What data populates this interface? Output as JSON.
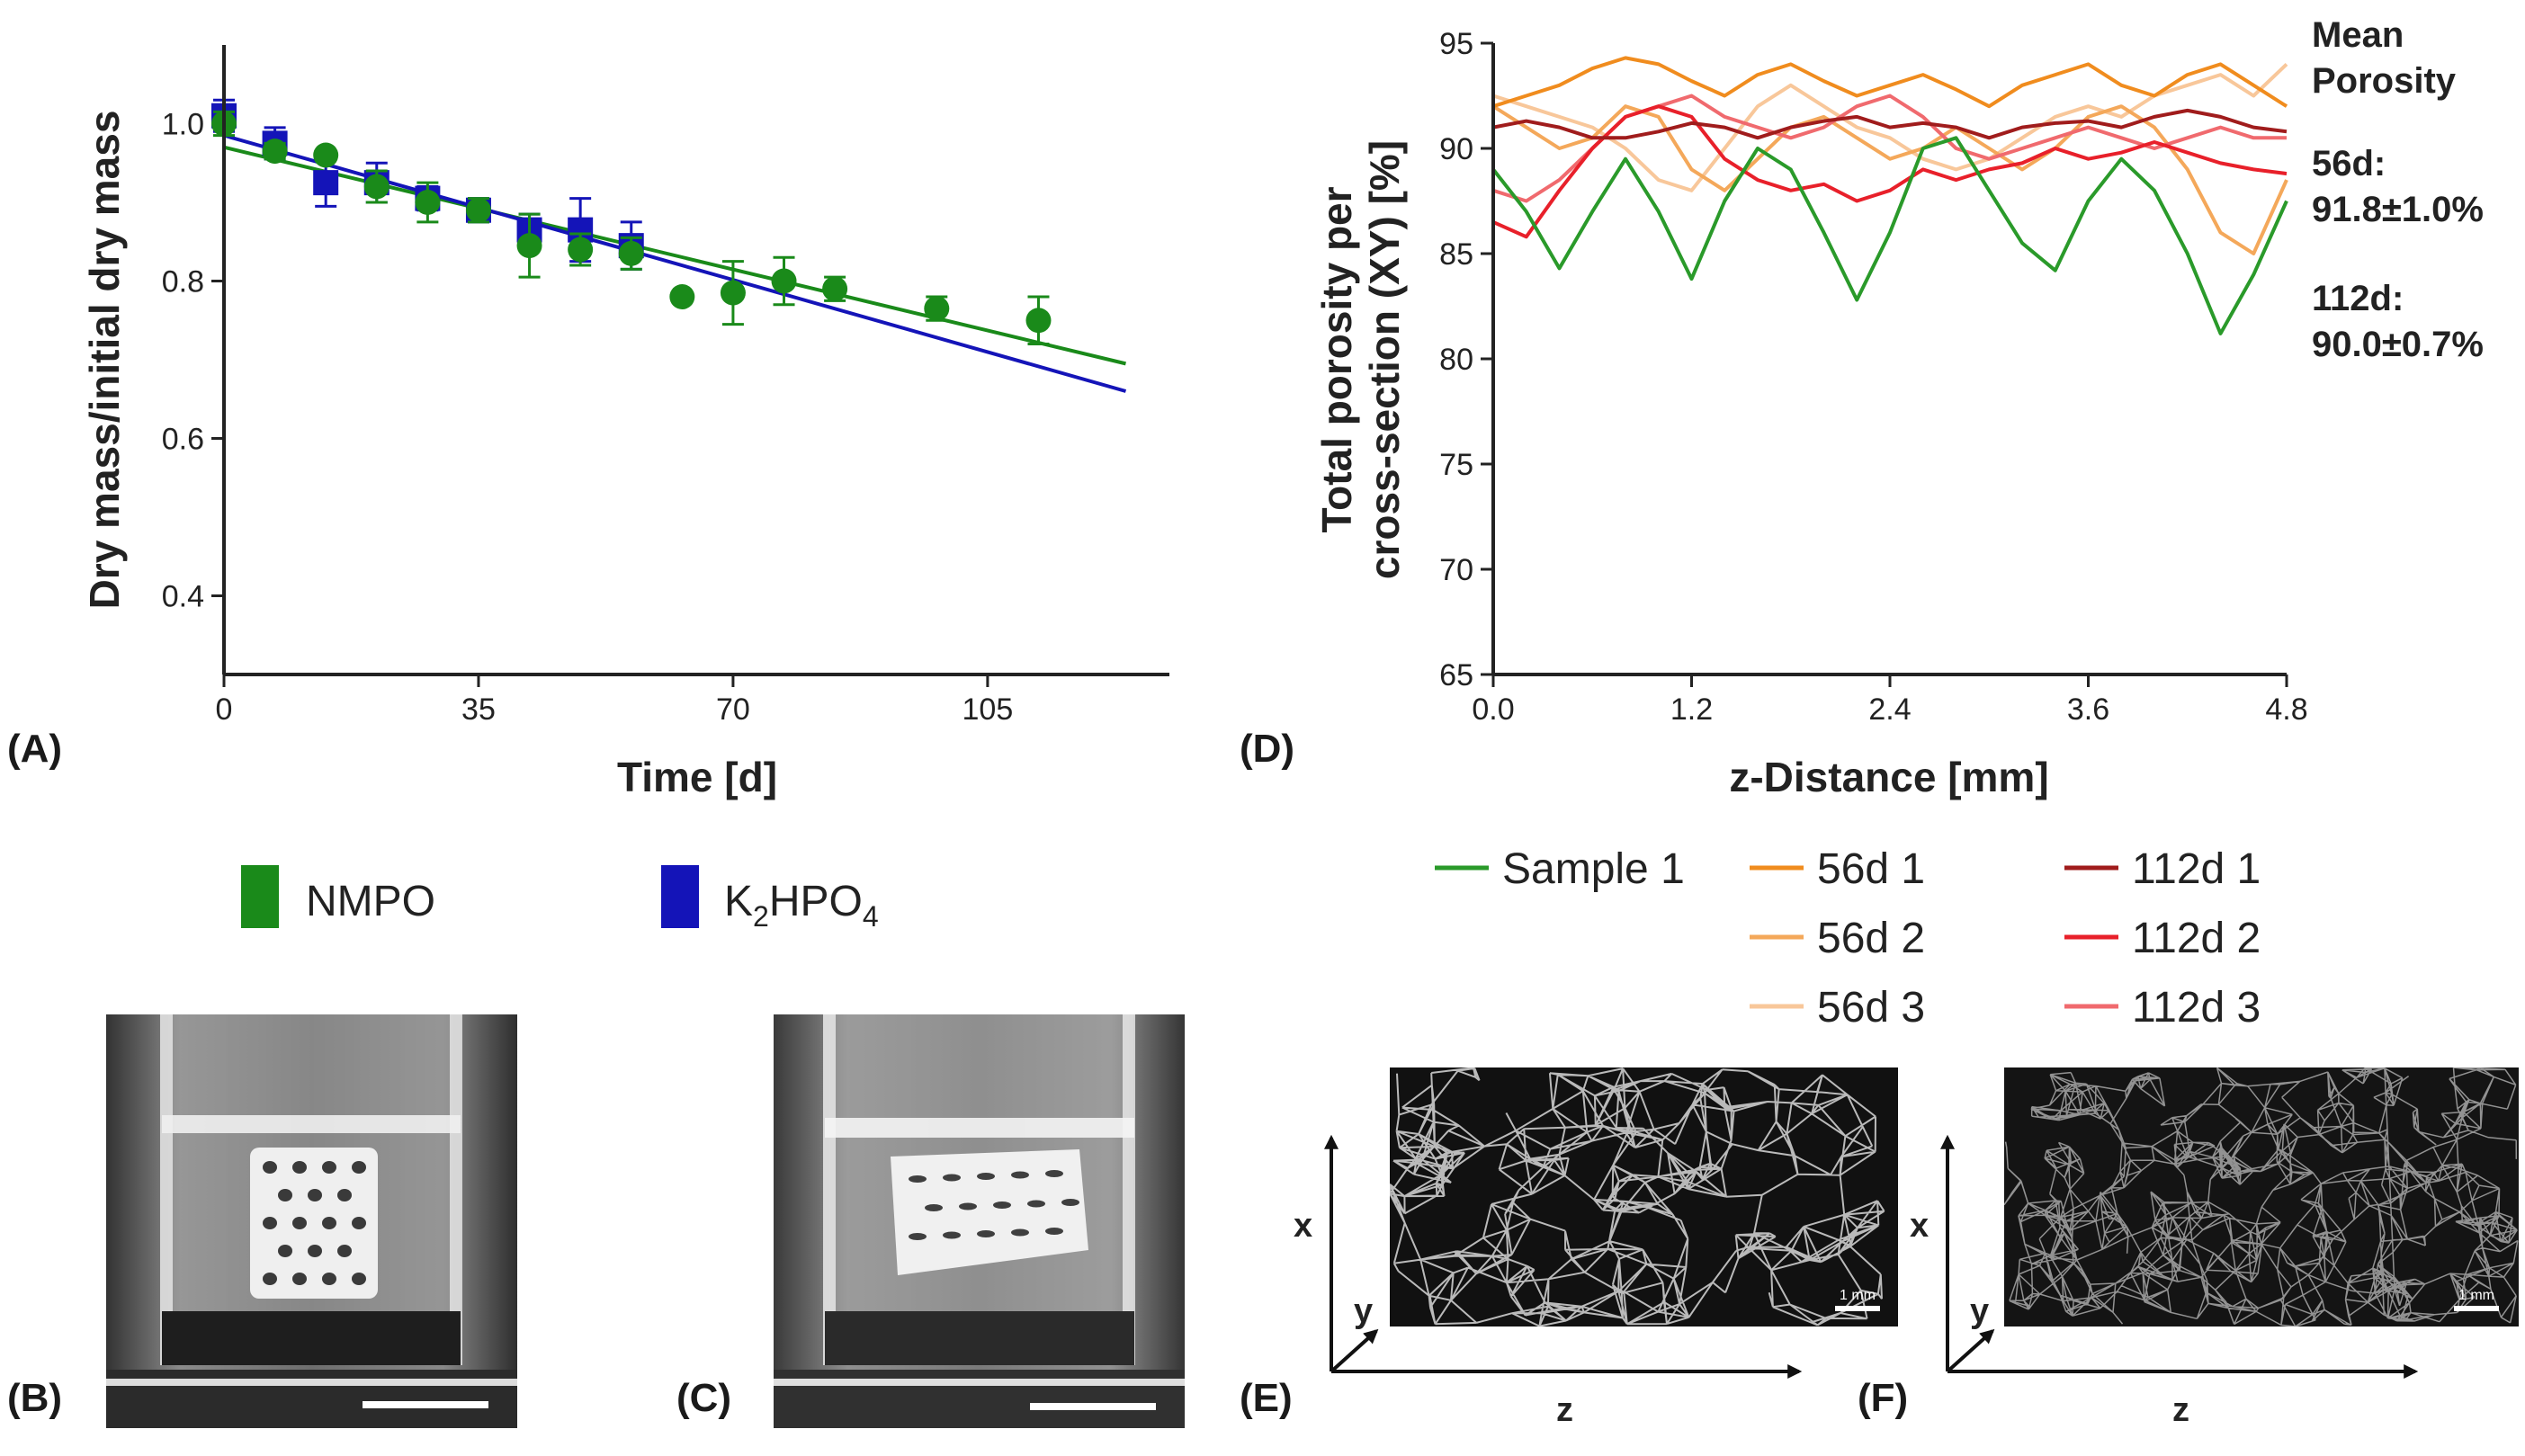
{
  "panel_labels": {
    "a": "(A)",
    "b": "(B)",
    "c": "(C)",
    "d": "(D)",
    "e": "(E)",
    "f": "(F)"
  },
  "legend_a": {
    "nmpo": "NMPO",
    "k2hpo4_main": "K",
    "k2hpo4_sub2": "2",
    "k2hpo4_mid": "HPO",
    "k2hpo4_sub4": "4"
  },
  "annotation_d": {
    "line1": "Mean",
    "line2": "Porosity",
    "d56_label": "56d:",
    "d56_value": "91.8±1.0%",
    "d112_label": "112d:",
    "d112_value": "90.0±0.7%"
  },
  "axes_3d": {
    "x": "x",
    "y": "y",
    "z": "z"
  },
  "scale_bars": {
    "e": "1 mm",
    "f": "1 mm"
  },
  "colors": {
    "nmpo": "#1a8a1a",
    "k2hpo4": "#1414b8",
    "sample1": "#2a9a2a",
    "d56_1": "#f08c1e",
    "d56_2": "#f4a85a",
    "d56_3": "#f8c79a",
    "d112_1": "#a01c1c",
    "d112_2": "#e8202a",
    "d112_3": "#f06a6e"
  },
  "chart_data": [
    {
      "type": "scatter",
      "panel": "A",
      "xlabel": "Time [d]",
      "ylabel": "Dry mass/initial dry mass",
      "xlim": [
        0,
        130
      ],
      "ylim": [
        0.3,
        1.1
      ],
      "xticks": [
        0,
        35,
        70,
        105
      ],
      "yticks": [
        0.4,
        0.6,
        0.8,
        1.0
      ],
      "xtick_labels": [
        "0",
        "35",
        "70",
        "105"
      ],
      "ytick_labels": [
        "0.4",
        "0.6",
        "0.8",
        "1.0"
      ],
      "series": [
        {
          "name": "K2HPO4",
          "marker": "square",
          "x": [
            0,
            7,
            14,
            21,
            28,
            35,
            42,
            49,
            56
          ],
          "y": [
            1.01,
            0.975,
            0.925,
            0.925,
            0.905,
            0.89,
            0.865,
            0.865,
            0.845
          ],
          "err": [
            0.02,
            0.02,
            0.03,
            0.025,
            0.015,
            0.015,
            0.02,
            0.04,
            0.03
          ]
        },
        {
          "name": "NMPO",
          "marker": "circle",
          "x": [
            0,
            7,
            14,
            21,
            28,
            35,
            42,
            49,
            56,
            63,
            70,
            77,
            84,
            98,
            112
          ],
          "y": [
            1.0,
            0.965,
            0.96,
            0.92,
            0.9,
            0.89,
            0.845,
            0.84,
            0.835,
            0.78,
            0.785,
            0.8,
            0.79,
            0.765,
            0.75
          ],
          "err": [
            0.015,
            0.01,
            0.0,
            0.02,
            0.025,
            0.015,
            0.04,
            0.02,
            0.02,
            0.0,
            0.04,
            0.03,
            0.015,
            0.015,
            0.03
          ]
        }
      ],
      "fit_lines": [
        {
          "name": "NMPO fit",
          "x": [
            0,
            124
          ],
          "y": [
            0.97,
            0.695
          ]
        },
        {
          "name": "K2HPO4 fit",
          "x": [
            0,
            124
          ],
          "y": [
            0.985,
            0.66
          ]
        }
      ]
    },
    {
      "type": "line",
      "panel": "D",
      "xlabel": "z-Distance [mm]",
      "ylabel_line1": "Total porosity per",
      "ylabel_line2": "cross-section (XY) [%]",
      "xlim": [
        0,
        4.8
      ],
      "ylim": [
        65,
        95
      ],
      "xticks": [
        0,
        1.2,
        2.4,
        3.6,
        4.8
      ],
      "yticks": [
        65,
        70,
        75,
        80,
        85,
        90,
        95
      ],
      "xtick_labels": [
        "0.0",
        "1.2",
        "2.4",
        "3.6",
        "4.8"
      ],
      "ytick_labels": [
        "65",
        "70",
        "75",
        "80",
        "85",
        "90",
        "95"
      ],
      "x": [
        0,
        0.2,
        0.4,
        0.6,
        0.8,
        1.0,
        1.2,
        1.4,
        1.6,
        1.8,
        2.0,
        2.2,
        2.4,
        2.6,
        2.8,
        3.0,
        3.2,
        3.4,
        3.6,
        3.8,
        4.0,
        4.2,
        4.4,
        4.6,
        4.8
      ],
      "series": [
        {
          "name": "Sample 1",
          "values": [
            89,
            87,
            84.3,
            87,
            89.5,
            87,
            83.8,
            87.5,
            90,
            89,
            86,
            82.8,
            86,
            90,
            90.5,
            88,
            85.5,
            84.2,
            87.5,
            89.5,
            88,
            85,
            81.2,
            84,
            87.5
          ]
        },
        {
          "name": "56d 1",
          "values": [
            92,
            92.5,
            93,
            93.8,
            94.3,
            94,
            93.2,
            92.5,
            93.5,
            94,
            93.2,
            92.5,
            93,
            93.5,
            92.8,
            92,
            93,
            93.5,
            94,
            93,
            92.5,
            93.5,
            94,
            93,
            92
          ]
        },
        {
          "name": "56d 2",
          "values": [
            92,
            91,
            90,
            90.5,
            92,
            91.5,
            89,
            88,
            89.5,
            91,
            91.5,
            90.5,
            89.5,
            90,
            91,
            90,
            89,
            90,
            91.5,
            92,
            91,
            89,
            86,
            85,
            88.5
          ]
        },
        {
          "name": "56d 3",
          "values": [
            92.5,
            92,
            91.5,
            91,
            90,
            88.5,
            88,
            90,
            92,
            93,
            92,
            91,
            90.5,
            89.5,
            89,
            89.5,
            90.5,
            91.5,
            92,
            91.5,
            92.5,
            93,
            93.5,
            92.5,
            94
          ]
        },
        {
          "name": "112d 1",
          "values": [
            91,
            91.3,
            91,
            90.5,
            90.5,
            90.8,
            91.2,
            91,
            90.5,
            91,
            91.3,
            91.5,
            91,
            91.2,
            91,
            90.5,
            91,
            91.2,
            91.3,
            91,
            91.5,
            91.8,
            91.5,
            91,
            90.8
          ]
        },
        {
          "name": "112d 2",
          "values": [
            86.5,
            85.8,
            88,
            90,
            91.5,
            92,
            91.5,
            89.5,
            88.5,
            88,
            88.3,
            87.5,
            88,
            89,
            88.5,
            89,
            89.3,
            90,
            89.5,
            89.8,
            90.3,
            89.8,
            89.3,
            89,
            88.8
          ]
        },
        {
          "name": "112d 3",
          "values": [
            88,
            87.5,
            88.5,
            90,
            91.5,
            92,
            92.5,
            91.5,
            91,
            90.5,
            91,
            92,
            92.5,
            91.5,
            90,
            89.5,
            90,
            90.5,
            91,
            90.5,
            90,
            90.5,
            91,
            90.5,
            90.5
          ]
        }
      ]
    }
  ]
}
